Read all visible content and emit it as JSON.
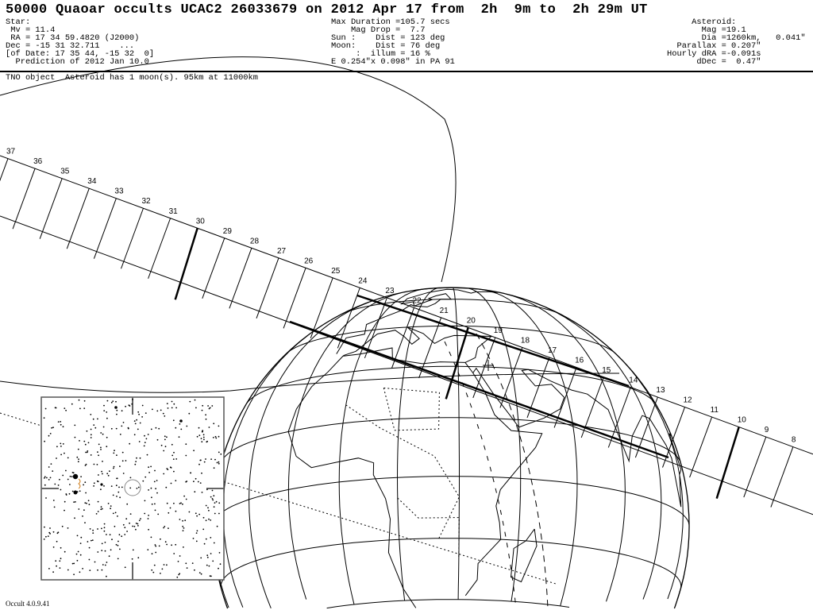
{
  "title": "50000 Quaoar occults UCAC2 26033679 on 2012 Apr 17 from  2h  9m to  2h 29m UT",
  "star": {
    "heading": "Star:",
    "mv": " Mv = 11.4",
    "ra": " RA = 17 34 59.4820 (J2000)",
    "dec": "Dec = -15 31 32.711    ...",
    "of_date": "[of Date: 17 35 44, -15 32  0]",
    "prediction": "  Prediction of 2012 Jan 10.0"
  },
  "event": {
    "max_duration": "Max Duration =105.7 secs",
    "mag_drop": "    Mag Drop =  7.7",
    "sun": "Sun :    Dist = 123 deg",
    "moon": "Moon:    Dist = 76 deg",
    "illum": "     :  illum = 16 %",
    "ellipse": "E 0.254\"x 0.098\" in PA 91"
  },
  "asteroid": {
    "heading": "     Asteroid:",
    "mag": "       Mag =19.1",
    "dia": "       Dia =1260km,   0.041\"",
    "parallax": "  Parallax = 0.207\"",
    "hourly_dra": "Hourly dRA =-0.091s",
    "ddec": "      dDec =  0.47\""
  },
  "note": "TNO object  Asteroid has 1 moon(s). 95km at 11000km",
  "track_minutes": [
    37,
    36,
    35,
    34,
    33,
    32,
    31,
    30,
    29,
    28,
    27,
    26,
    25,
    24,
    23,
    22,
    21,
    20,
    19,
    18,
    17,
    16,
    15,
    14,
    13,
    12,
    11,
    10,
    9,
    8
  ],
  "footer": "Occult 4.0.9.41"
}
